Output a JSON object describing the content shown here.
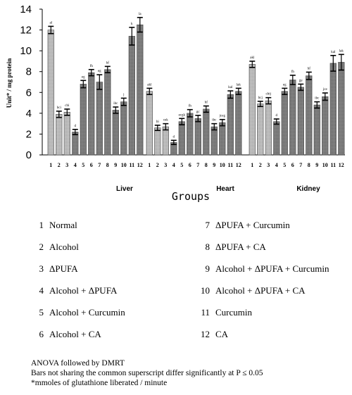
{
  "chart_data": {
    "type": "bar",
    "ylabel": "Unit* / mg protein",
    "xlabel": "Groups",
    "ylim": [
      0,
      14
    ],
    "yticks": [
      0,
      2,
      4,
      6,
      8,
      10,
      12,
      14
    ],
    "categories": [
      "1",
      "2",
      "3",
      "4",
      "5",
      "6",
      "7",
      "8",
      "9",
      "10",
      "11",
      "12"
    ],
    "panels": [
      {
        "name": "Liver",
        "values": [
          12.0,
          3.9,
          4.1,
          2.2,
          6.8,
          7.9,
          7.0,
          8.2,
          4.3,
          5.1,
          11.4,
          12.5
        ],
        "errors": [
          0.35,
          0.3,
          0.3,
          0.25,
          0.35,
          0.3,
          0.7,
          0.3,
          0.3,
          0.35,
          0.85,
          0.7
        ],
        "superscripts": [
          "al",
          "bci",
          "cbi",
          "d",
          "eg",
          "fh",
          "eg",
          "hf",
          "ibc",
          "j",
          "k",
          "la"
        ]
      },
      {
        "name": "Heart",
        "values": [
          6.1,
          2.6,
          2.7,
          1.2,
          3.2,
          4.0,
          3.5,
          4.4,
          2.7,
          3.1,
          5.8,
          6.1
        ],
        "errors": [
          0.3,
          0.25,
          0.3,
          0.2,
          0.3,
          0.35,
          0.3,
          0.3,
          0.3,
          0.3,
          0.35,
          0.3
        ],
        "superscripts": [
          "akl",
          "bi",
          "cek",
          "d",
          "ecgk",
          "fh",
          "gc",
          "hf",
          "ibc",
          "jceg",
          "kal",
          "lak"
        ]
      },
      {
        "name": "Kidney",
        "values": [
          8.7,
          4.9,
          5.2,
          3.2,
          6.1,
          7.2,
          6.5,
          7.6,
          4.8,
          5.6,
          8.8,
          8.9
        ],
        "errors": [
          0.3,
          0.25,
          0.3,
          0.25,
          0.3,
          0.45,
          0.3,
          0.35,
          0.3,
          0.35,
          0.75,
          0.75
        ],
        "superscripts": [
          "akl",
          "bcj",
          "cbij",
          "d",
          "eg",
          "fh",
          "ge",
          "hf",
          "ibc",
          "jce",
          "kal",
          "lak"
        ]
      }
    ],
    "grid": false
  },
  "legend": [
    {
      "num": "1",
      "label": "Normal"
    },
    {
      "num": "2",
      "label": "Alcohol"
    },
    {
      "num": "3",
      "label": "ΔPUFA"
    },
    {
      "num": "4",
      "label": "Alcohol + ΔPUFA"
    },
    {
      "num": "5",
      "label": "Alcohol + Curcumin"
    },
    {
      "num": "6",
      "label": "Alcohol + CA"
    },
    {
      "num": "7",
      "label": "ΔPUFA + Curcumin"
    },
    {
      "num": "8",
      "label": "ΔPUFA + CA"
    },
    {
      "num": "9",
      "label": "Alcohol + ΔPUFA + Curcumin"
    },
    {
      "num": "10",
      "label": "Alcohol + ΔPUFA + CA"
    },
    {
      "num": "11",
      "label": "Curcumin"
    },
    {
      "num": "12",
      "label": "CA"
    }
  ],
  "notes": {
    "line1": "ANOVA followed by DMRT",
    "line2": "Bars not sharing the common superscript differ significantly at P ≤ 0.05",
    "line3": "*mmoles of glutathione liberated / minute"
  },
  "colors": {
    "light_bar": "#bcbcbc",
    "dark_bar": "#7a7a7a",
    "error_bar": "#000000"
  }
}
